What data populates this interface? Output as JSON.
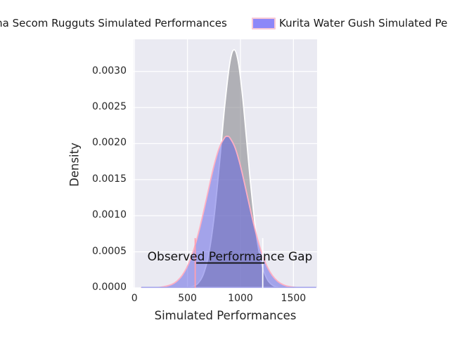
{
  "legend": {
    "items": [
      {
        "id": "secom",
        "label": "ma Secom Rugguts Simulated Performances",
        "swatch_visible": false
      },
      {
        "id": "kurita",
        "label": "Kurita Water Gush Simulated Pe",
        "swatch_visible": true,
        "swatch_fill": "#8d87f8",
        "swatch_border": "#f7c8d6"
      }
    ]
  },
  "chart_data": {
    "type": "area",
    "subtype": "kde-density",
    "title": "",
    "xlabel": "Simulated Performances",
    "ylabel": "Density",
    "xlim": [
      -8,
      1723
    ],
    "ylim": [
      0,
      0.003445
    ],
    "xticks": [
      0,
      500,
      1000,
      1500
    ],
    "yticks": [
      "0.0000",
      "0.0005",
      "0.0010",
      "0.0015",
      "0.0020",
      "0.0025",
      "0.0030"
    ],
    "grid": true,
    "legend_position": "above-plot",
    "colors": {
      "panel_bg": "#eaeaf2",
      "grid": "#ffffff",
      "text": "#262626",
      "baseline": "#a6a6ec"
    },
    "series": [
      {
        "name": "Secom Rugguts Simulated Performances",
        "fill": "rgba(127,127,133,0.55)",
        "stroke": "#ffffff",
        "peak_x": 940,
        "peak_density": 0.0033,
        "x": [
          450,
          500,
          550,
          600,
          650,
          700,
          750,
          800,
          850,
          900,
          940,
          980,
          1020,
          1060,
          1100,
          1150,
          1200,
          1250,
          1300,
          1350,
          1400
        ],
        "density": [
          2e-06,
          4.5e-06,
          1.86e-05,
          6.4e-05,
          0.000187,
          0.000462,
          0.000962,
          0.00169,
          0.0025,
          0.00312,
          0.0033,
          0.003126,
          0.002652,
          0.002018,
          0.00138,
          0.00073,
          0.00033,
          0.000124,
          3.94e-05,
          1.06e-05,
          2.4e-06
        ]
      },
      {
        "name": "Kurita Water Gush Simulated Performances",
        "fill": "rgba(92,92,226,0.5)",
        "stroke": "#ffafc2",
        "peak_x": 875,
        "peak_density": 0.0021,
        "x": [
          60,
          150,
          250,
          350,
          400,
          450,
          500,
          550,
          600,
          650,
          700,
          750,
          800,
          850,
          875,
          900,
          950,
          1000,
          1050,
          1100,
          1150,
          1200,
          1250,
          1300,
          1350,
          1400,
          1450,
          1500,
          1600,
          1715
        ],
        "density": [
          0,
          5e-07,
          9.4e-06,
          4.6e-05,
          9.22e-05,
          0.000172,
          0.0003,
          0.000486,
          0.000737,
          0.00104,
          0.00137,
          0.00169,
          0.00194,
          0.00208,
          0.0021,
          0.00208,
          0.00194,
          0.00169,
          0.00137,
          0.00104,
          0.000737,
          0.000486,
          0.0003,
          0.000172,
          9.22e-05,
          4.6e-05,
          2.16e-05,
          9.4e-06,
          1.1e-06,
          0
        ]
      }
    ],
    "baseline": {
      "x1": 65,
      "x2": 1715
    },
    "observed_vlines": [
      {
        "id": "kurita-observed",
        "x": 573,
        "color": "#ff9fb0",
        "density_top": 0.00069
      },
      {
        "id": "secom-observed",
        "x": 1210,
        "color": "#ffffff",
        "density_top": 0.00069
      }
    ],
    "annotation": {
      "text": "Observed Performance Gap",
      "line": {
        "x1": 583,
        "x2": 1226,
        "density": 0.000345,
        "color": "#111111"
      }
    }
  }
}
